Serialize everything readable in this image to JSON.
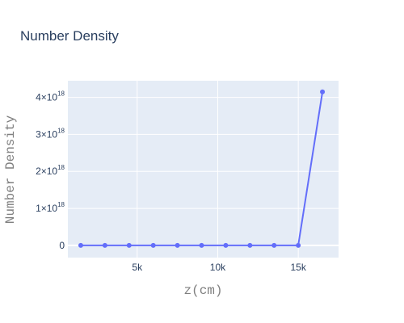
{
  "chart_data": {
    "type": "line",
    "title": "Number Density",
    "xlabel": "z(cm)",
    "ylabel": "Number Density",
    "xlim": [
      700,
      17500
    ],
    "ylim": [
      -3.3e+17,
      4.45e+18
    ],
    "x_ticks": [
      {
        "value": 5000,
        "label": "5k"
      },
      {
        "value": 10000,
        "label": "10k"
      },
      {
        "value": 15000,
        "label": "15k"
      }
    ],
    "y_ticks": [
      {
        "value": 0,
        "mantissa": "0",
        "exponent": ""
      },
      {
        "value": 1e+18,
        "mantissa": "1×10",
        "exponent": "18"
      },
      {
        "value": 2e+18,
        "mantissa": "2×10",
        "exponent": "18"
      },
      {
        "value": 3e+18,
        "mantissa": "3×10",
        "exponent": "18"
      },
      {
        "value": 4e+18,
        "mantissa": "4×10",
        "exponent": "18"
      }
    ],
    "grid": true,
    "series": [
      {
        "color": "#636efa",
        "x": [
          1500,
          3000,
          4500,
          6000,
          7500,
          9000,
          10500,
          12000,
          13500,
          15000,
          16500
        ],
        "y": [
          0,
          0,
          0,
          0,
          0,
          0,
          0,
          0,
          0,
          0,
          4.15e+18
        ]
      }
    ],
    "colors": {
      "plot_bg": "#e5ecf6",
      "grid": "#ffffff"
    }
  }
}
